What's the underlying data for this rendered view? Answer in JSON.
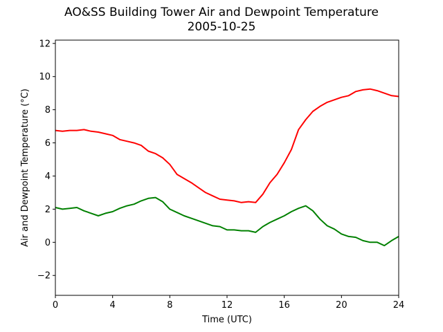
{
  "chart_data": {
    "type": "line",
    "title": "AO&SS Building Tower Air and Dewpoint Temperature",
    "subtitle": "2005-10-25",
    "xlabel": "Time (UTC)",
    "ylabel": "Air and Dewpoint Temperature (°C)",
    "xlim": [
      0,
      24
    ],
    "ylim": [
      -3.2,
      12.2
    ],
    "x_ticks": [
      0,
      4,
      8,
      12,
      16,
      20,
      24
    ],
    "y_ticks": [
      -2,
      0,
      2,
      4,
      6,
      8,
      10,
      12
    ],
    "grid": false,
    "legend": "none",
    "series": [
      {
        "color": "#ff0000",
        "x": [
          0,
          0.5,
          1,
          1.5,
          2,
          2.5,
          3,
          3.5,
          4,
          4.5,
          5,
          5.5,
          6,
          6.5,
          7,
          7.5,
          8,
          8.5,
          9,
          9.5,
          10,
          10.5,
          11,
          11.5,
          12,
          12.5,
          13,
          13.5,
          14,
          14.5,
          15,
          15.5,
          16,
          16.5,
          17,
          17.5,
          18,
          18.5,
          19,
          19.5,
          20,
          20.5,
          21,
          21.5,
          22,
          22.5,
          23,
          23.5,
          24
        ],
        "values": [
          6.75,
          6.7,
          6.75,
          6.75,
          6.8,
          6.7,
          6.65,
          6.55,
          6.45,
          6.2,
          6.1,
          6.0,
          5.85,
          5.5,
          5.35,
          5.1,
          4.7,
          4.1,
          3.85,
          3.6,
          3.3,
          3.0,
          2.8,
          2.6,
          2.55,
          2.5,
          2.4,
          2.45,
          2.4,
          2.9,
          3.6,
          4.1,
          4.8,
          5.6,
          6.8,
          7.4,
          7.9,
          8.2,
          8.45,
          8.6,
          8.75,
          8.85,
          9.1,
          9.2,
          9.25,
          9.15,
          9.0,
          8.85,
          8.8
        ]
      },
      {
        "color": "#008000",
        "x": [
          0,
          0.5,
          1,
          1.5,
          2,
          2.5,
          3,
          3.5,
          4,
          4.5,
          5,
          5.5,
          6,
          6.5,
          7,
          7.5,
          8,
          8.5,
          9,
          9.5,
          10,
          10.5,
          11,
          11.5,
          12,
          12.5,
          13,
          13.5,
          14,
          14.5,
          15,
          15.5,
          16,
          16.5,
          17,
          17.5,
          18,
          18.5,
          19,
          19.5,
          20,
          20.5,
          21,
          21.5,
          22,
          22.5,
          23,
          23.5,
          24
        ],
        "values": [
          2.1,
          2.0,
          2.05,
          2.1,
          1.9,
          1.75,
          1.6,
          1.75,
          1.85,
          2.05,
          2.2,
          2.3,
          2.5,
          2.65,
          2.7,
          2.45,
          2.0,
          1.8,
          1.6,
          1.45,
          1.3,
          1.15,
          1.0,
          0.95,
          0.75,
          0.75,
          0.7,
          0.7,
          0.6,
          0.95,
          1.2,
          1.4,
          1.6,
          1.85,
          2.05,
          2.2,
          1.9,
          1.4,
          1.0,
          0.8,
          0.5,
          0.35,
          0.3,
          0.1,
          0.0,
          0.0,
          -0.2,
          0.1,
          0.35
        ]
      }
    ]
  }
}
